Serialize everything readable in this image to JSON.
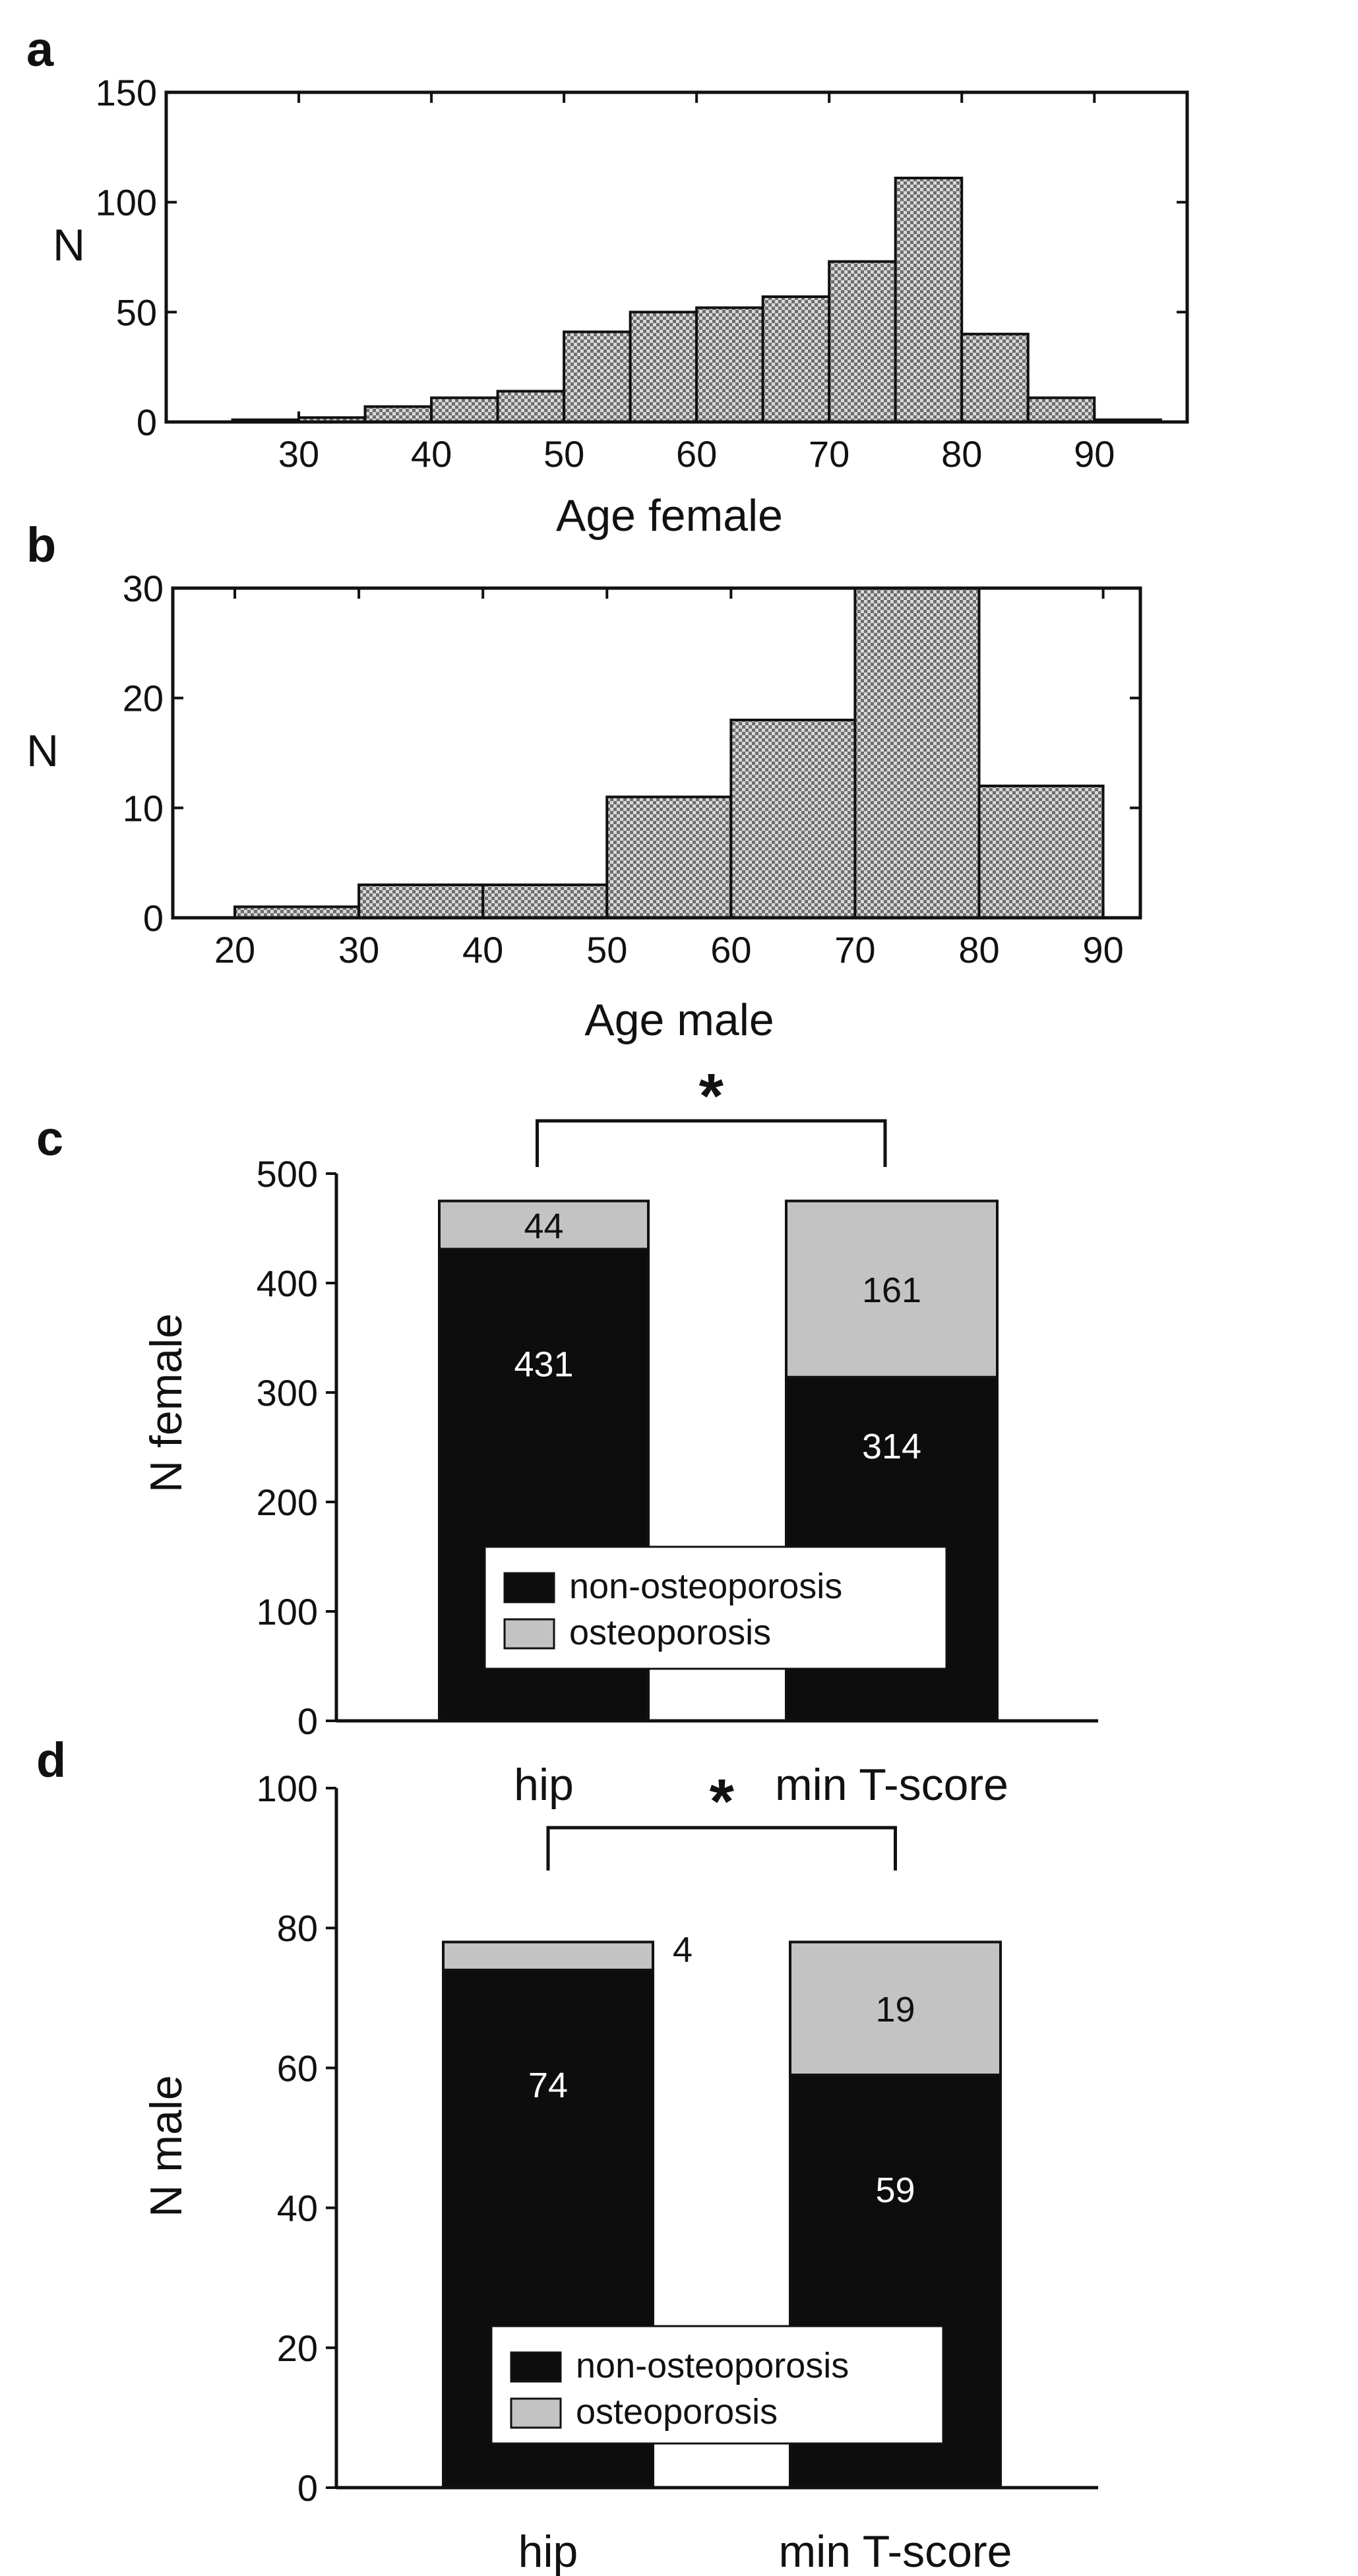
{
  "colors": {
    "background": "#ffffff",
    "non_osteoporosis": "#0d0d0d",
    "osteoporosis": "#c3c3c3",
    "histogram_fill": "#9a9a9a",
    "axis": "#111111"
  },
  "chart_data": [
    {
      "panel": "a",
      "type": "bar",
      "subtype": "histogram",
      "title": "",
      "xlabel": "Age female",
      "ylabel": "N",
      "xlim": [
        20,
        97
      ],
      "ylim": [
        0,
        150
      ],
      "xticks": [
        30,
        40,
        50,
        60,
        70,
        80,
        90
      ],
      "yticks": [
        0,
        50,
        100,
        150
      ],
      "bin_width": 5,
      "bin_starts": [
        25,
        30,
        35,
        40,
        45,
        50,
        55,
        60,
        65,
        70,
        75,
        80,
        85,
        90
      ],
      "values": [
        1,
        2,
        7,
        11,
        14,
        41,
        50,
        52,
        57,
        73,
        111,
        40,
        11,
        1
      ]
    },
    {
      "panel": "b",
      "type": "bar",
      "subtype": "histogram",
      "title": "",
      "xlabel": "Age male",
      "ylabel": "N",
      "xlim": [
        15,
        93
      ],
      "ylim": [
        0,
        30
      ],
      "xticks": [
        20,
        30,
        40,
        50,
        60,
        70,
        80,
        90
      ],
      "yticks": [
        0,
        10,
        20,
        30
      ],
      "bin_width": 10,
      "bin_starts": [
        20,
        30,
        40,
        50,
        60,
        70,
        80
      ],
      "values": [
        1,
        3,
        3,
        11,
        18,
        30,
        12
      ]
    },
    {
      "panel": "c",
      "type": "bar",
      "subtype": "stacked",
      "title": "",
      "xlabel": "",
      "ylabel": "N female",
      "ylim": [
        0,
        500
      ],
      "yticks": [
        0,
        100,
        200,
        300,
        400,
        500
      ],
      "categories": [
        "hip",
        "min T-score"
      ],
      "series": [
        {
          "name": "non-osteoporosis",
          "values": [
            431,
            314
          ],
          "labels": [
            "431",
            "314"
          ]
        },
        {
          "name": "osteoporosis",
          "values": [
            44,
            161
          ],
          "labels": [
            "44",
            "161"
          ]
        }
      ],
      "legend": [
        "non-osteoporosis",
        "osteoporosis"
      ],
      "legend_position": "bottom-center",
      "significance": "*"
    },
    {
      "panel": "d",
      "type": "bar",
      "subtype": "stacked",
      "title": "",
      "xlabel": "",
      "ylabel": "N male",
      "ylim": [
        0,
        100
      ],
      "yticks": [
        0,
        20,
        40,
        60,
        80,
        100
      ],
      "categories": [
        "hip",
        "min T-score"
      ],
      "series": [
        {
          "name": "non-osteoporosis",
          "values": [
            74,
            59
          ],
          "labels": [
            "74",
            "59"
          ]
        },
        {
          "name": "osteoporosis",
          "values": [
            4,
            19
          ],
          "labels": [
            "4",
            "19"
          ]
        }
      ],
      "legend": [
        "non-osteoporosis",
        "osteoporosis"
      ],
      "legend_position": "bottom-center",
      "significance": "*"
    }
  ]
}
